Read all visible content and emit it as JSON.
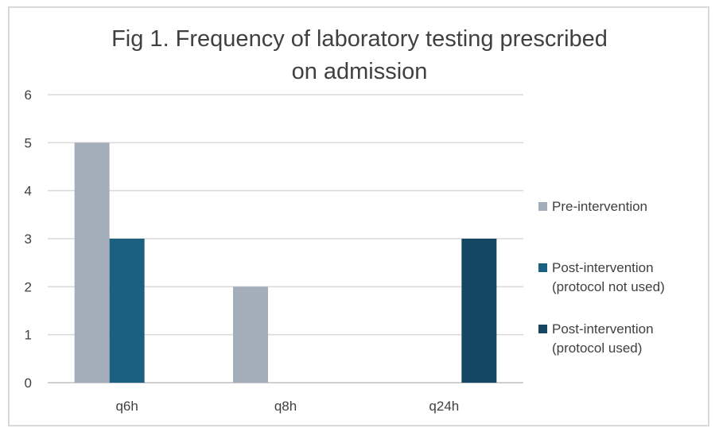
{
  "chart_data": {
    "type": "bar",
    "title_lines": [
      "Fig 1. Frequency of laboratory testing prescribed",
      "on admission"
    ],
    "categories": [
      "q6h",
      "q8h",
      "q24h"
    ],
    "y_ticks": [
      "0",
      "1",
      "2",
      "3",
      "4",
      "5",
      "6"
    ],
    "ylim": [
      0,
      6
    ],
    "grid": true,
    "legend_position": "right",
    "series": [
      {
        "name_lines": [
          "Pre-intervention"
        ],
        "values": [
          5,
          2,
          0
        ],
        "color": "#a3aeba"
      },
      {
        "name_lines": [
          "Post-intervention",
          "(protocol not used)"
        ],
        "values": [
          3,
          0,
          0
        ],
        "color": "#1b607f"
      },
      {
        "name_lines": [
          "Post-intervention",
          "(protocol used)"
        ],
        "values": [
          0,
          0,
          3
        ],
        "color": "#154763"
      }
    ]
  }
}
